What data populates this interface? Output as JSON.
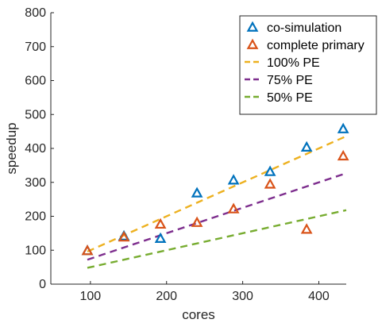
{
  "chart_data": {
    "type": "scatter",
    "title": "",
    "xlabel": "cores",
    "ylabel": "speedup",
    "xlim": [
      48,
      436
    ],
    "ylim": [
      0,
      800
    ],
    "xticks": [
      100,
      200,
      300,
      400
    ],
    "yticks": [
      0,
      100,
      200,
      300,
      400,
      500,
      600,
      700,
      800
    ],
    "grid": false,
    "legend_position": "top-right",
    "series": [
      {
        "name": "co-simulation",
        "kind": "markers",
        "marker": "triangle",
        "color": "#0072BD",
        "x": [
          96,
          144,
          192,
          240,
          288,
          336,
          384,
          432
        ],
        "y": [
          97,
          140,
          133,
          267,
          305,
          330,
          402,
          456
        ]
      },
      {
        "name": "complete primary",
        "kind": "markers",
        "marker": "triangle",
        "color": "#D95319",
        "x": [
          96,
          144,
          192,
          240,
          288,
          336,
          384,
          432
        ],
        "y": [
          97,
          137,
          175,
          180,
          220,
          293,
          160,
          376
        ]
      },
      {
        "name": "100% PE",
        "kind": "dashed-line",
        "color": "#EDB120",
        "x": [
          96,
          436
        ],
        "y": [
          96,
          436
        ]
      },
      {
        "name": "75% PE",
        "kind": "dashed-line",
        "color": "#7E2F8E",
        "x": [
          96,
          436
        ],
        "y": [
          72,
          327
        ]
      },
      {
        "name": "50% PE",
        "kind": "dashed-line",
        "color": "#77AC30",
        "x": [
          96,
          436
        ],
        "y": [
          48,
          218
        ]
      }
    ]
  }
}
